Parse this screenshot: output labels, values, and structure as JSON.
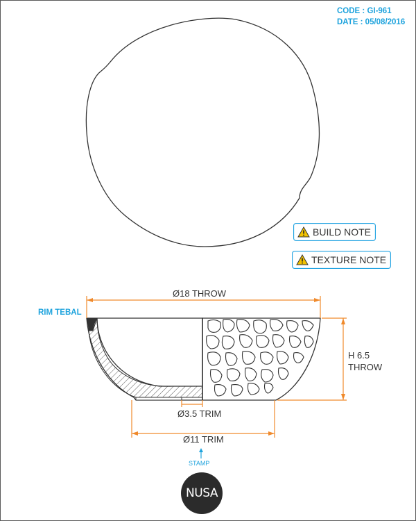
{
  "meta": {
    "code": "CODE : GI-961",
    "date": "DATE : 05/08/2016"
  },
  "notes": {
    "build_note": "BUILD NOTE",
    "texture_note": "TEXTURE NOTE"
  },
  "labels": {
    "rim": "RIM TEBAL",
    "throw_diameter": "Ø18 THROW",
    "height_line1": "H 6.5",
    "height_line2": "THROW",
    "inner_trim": "Ø3.5 TRIM",
    "outer_trim": "Ø11 TRIM",
    "stamp": "STAMP",
    "logo": "NUSA"
  },
  "colors": {
    "accent": "#1ea3dd",
    "dimension": "#f08a2c",
    "line": "#333333",
    "warning": "#f2c200"
  }
}
